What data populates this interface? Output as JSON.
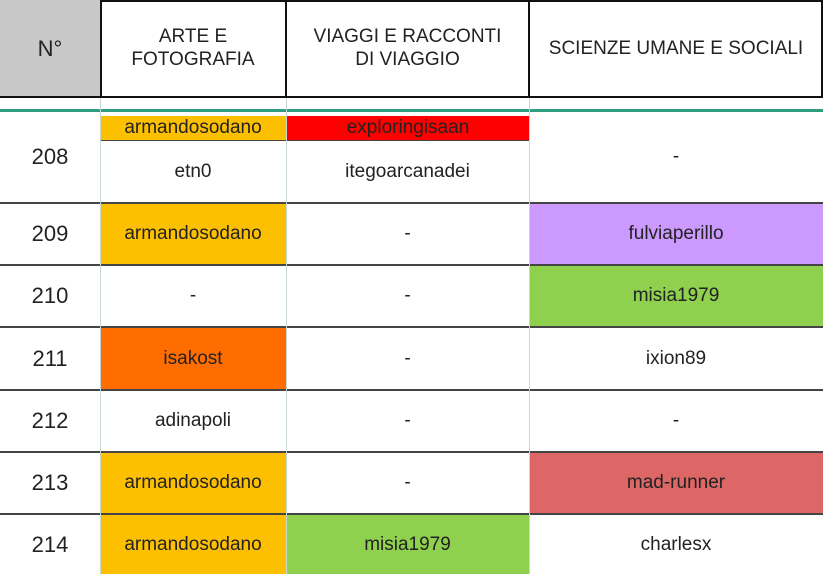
{
  "colors": {
    "gray_header": "#c8c8c8",
    "orange": "#fdc000",
    "red": "#ff0000",
    "dark_orange": "#ff6d00",
    "purple": "#cc99ff",
    "green": "#8fd14f",
    "salmon": "#dd6666",
    "teal_rule": "#2e9e7e"
  },
  "header": {
    "num": "N°",
    "col1": "ARTE E\nFOTOGRAFIA",
    "col2": "VIAGGI E RACCONTI\nDI VIAGGIO",
    "col3": "SCIENZE UMANE E SOCIALI"
  },
  "rows": [
    {
      "num": "208",
      "col1_top": "armandosodano",
      "col2_top": "exploringisaan",
      "col1": "etn0",
      "col2": "itegoarcanadei",
      "col3": "-"
    },
    {
      "num": "209",
      "col1": "armandosodano",
      "col2": "-",
      "col3": "fulviaperillo"
    },
    {
      "num": "210",
      "col1": "-",
      "col2": "-",
      "col3": "misia1979"
    },
    {
      "num": "211",
      "col1": "isakost",
      "col2": "-",
      "col3": "ixion89"
    },
    {
      "num": "212",
      "col1": "adinapoli",
      "col2": "-",
      "col3": "-"
    },
    {
      "num": "213",
      "col1": "armandosodano",
      "col2": "-",
      "col3": "mad-runner"
    },
    {
      "num": "214",
      "col1": "armandosodano",
      "col2": "misia1979",
      "col3": "charlesx"
    }
  ]
}
